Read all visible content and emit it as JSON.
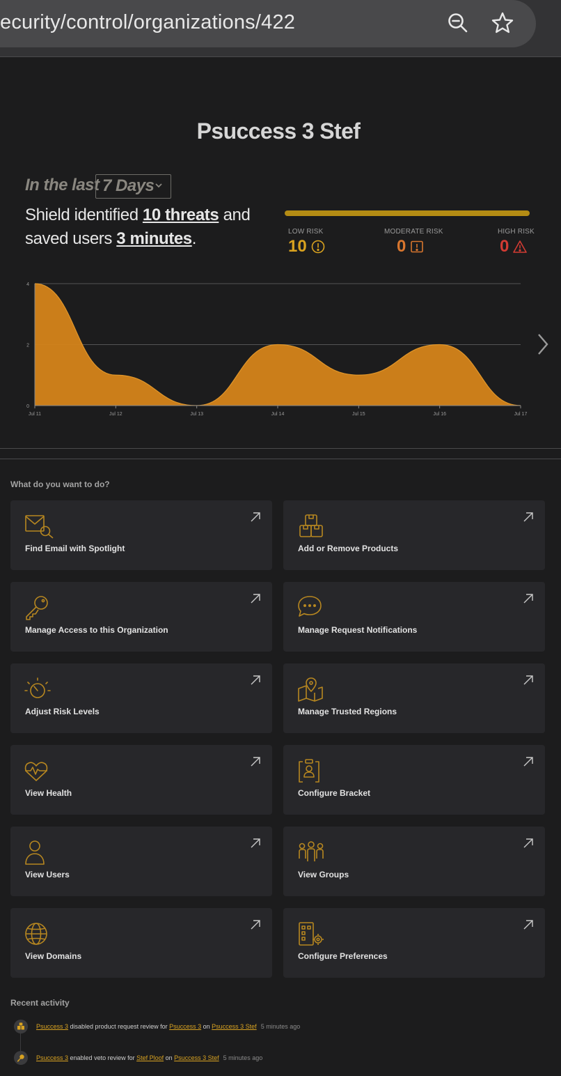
{
  "browser": {
    "url": "ecurity/control/organizations/422",
    "icons": [
      "zoom-out-icon",
      "star-icon"
    ]
  },
  "hero": {
    "title": "Psuccess 3 Stef",
    "in_the_last": "In the last",
    "period": "7 Days",
    "summary_prefix": "Shield identified ",
    "threats": "10 threats",
    "summary_mid": " and saved users ",
    "minutes": "3 minutes",
    "summary_end": "."
  },
  "risk": {
    "low_label": "LOW RISK",
    "low_value": "10",
    "low_color": "#d9a21f",
    "moderate_label": "MODERATE RISK",
    "moderate_value": "0",
    "moderate_color": "#d8762e",
    "high_label": "HIGH RISK",
    "high_value": "0",
    "high_color": "#d23b33"
  },
  "chart_data": {
    "type": "area",
    "x": [
      "Jul 11",
      "Jul 12",
      "Jul 13",
      "Jul 14",
      "Jul 15",
      "Jul 16",
      "Jul 17"
    ],
    "values": [
      4,
      1,
      0,
      2,
      1,
      2,
      0
    ],
    "yticks": [
      "0",
      "2",
      "4"
    ],
    "ylim": [
      0,
      4
    ],
    "grid": true,
    "color": "#d5841a"
  },
  "actions": {
    "heading": "What do you want to do?",
    "items": [
      {
        "label": "Find Email with Spotlight",
        "icon": "spotlight-email-icon"
      },
      {
        "label": "Add or Remove Products",
        "icon": "products-boxes-icon"
      },
      {
        "label": "Manage Access to this Organization",
        "icon": "key-icon"
      },
      {
        "label": "Manage Request Notifications",
        "icon": "chat-bubble-icon"
      },
      {
        "label": "Adjust Risk Levels",
        "icon": "gauge-icon"
      },
      {
        "label": "Manage Trusted Regions",
        "icon": "map-pin-icon"
      },
      {
        "label": "View Health",
        "icon": "heartbeat-icon"
      },
      {
        "label": "Configure Bracket",
        "icon": "bracket-icon"
      },
      {
        "label": "View Users",
        "icon": "user-icon"
      },
      {
        "label": "View Groups",
        "icon": "group-icon"
      },
      {
        "label": "View Domains",
        "icon": "globe-icon"
      },
      {
        "label": "Configure Preferences",
        "icon": "building-gear-icon"
      }
    ]
  },
  "activity": {
    "heading": "Recent activity",
    "items": [
      {
        "actor": "Psuccess 3",
        "action": " disabled product request review for ",
        "target": "Psuccess 3",
        "on": " on ",
        "org": "Psuccess 3 Stef",
        "time": "5 minutes ago",
        "icon": "products-icon"
      },
      {
        "actor": "Psuccess 3",
        "action": " enabled veto review for ",
        "target": "Stef Ploof",
        "on": " on ",
        "org": "Psuccess 3 Stef",
        "time": "5 minutes ago",
        "icon": "key-icon"
      }
    ]
  }
}
